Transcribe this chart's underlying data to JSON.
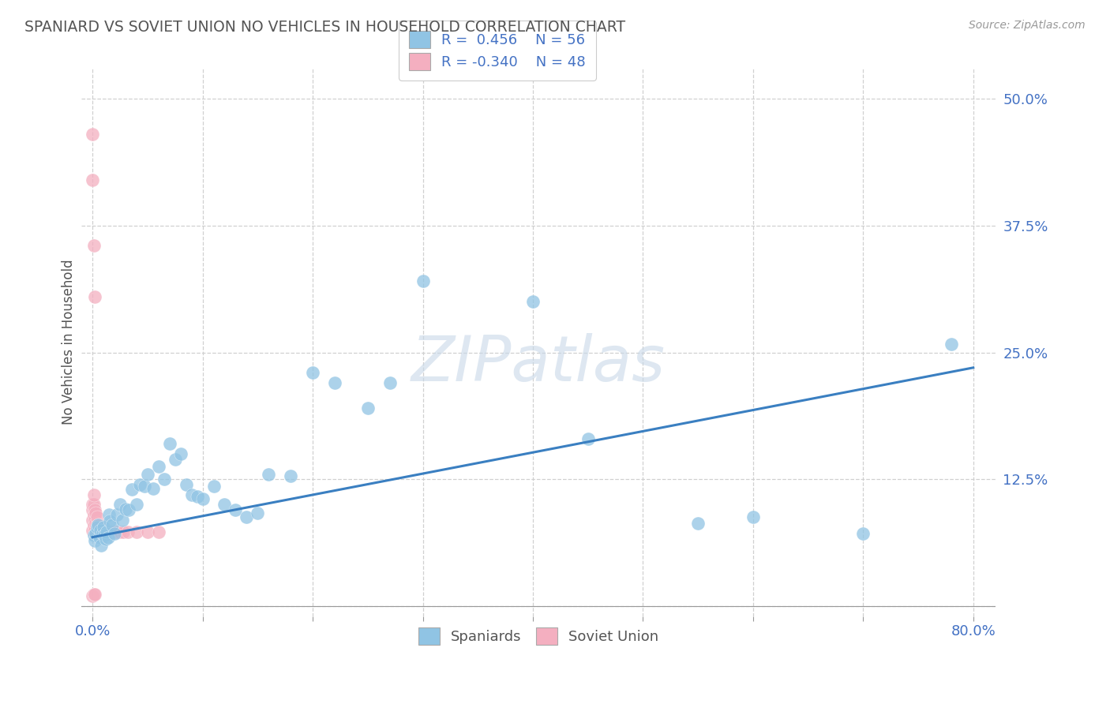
{
  "title": "SPANIARD VS SOVIET UNION NO VEHICLES IN HOUSEHOLD CORRELATION CHART",
  "source": "Source: ZipAtlas.com",
  "ylabel": "No Vehicles in Household",
  "xlim": [
    -0.01,
    0.82
  ],
  "ylim": [
    -0.01,
    0.53
  ],
  "xticks": [
    0.0,
    0.1,
    0.2,
    0.3,
    0.4,
    0.5,
    0.6,
    0.7,
    0.8
  ],
  "xticklabels": [
    "0.0%",
    "",
    "",
    "",
    "",
    "",
    "",
    "",
    "80.0%"
  ],
  "yticks": [
    0.0,
    0.125,
    0.25,
    0.375,
    0.5
  ],
  "yticklabels": [
    "",
    "12.5%",
    "25.0%",
    "37.5%",
    "50.0%"
  ],
  "blue_color": "#90c4e4",
  "pink_color": "#f4afc0",
  "line_color": "#3a7fc1",
  "tick_color": "#4472c4",
  "title_color": "#555555",
  "source_color": "#999999",
  "watermark": "ZIPatlas",
  "blue_R": 0.456,
  "blue_N": 56,
  "pink_R": -0.34,
  "pink_N": 48,
  "blue_line_x0": 0.0,
  "blue_line_y0": 0.068,
  "blue_line_x1": 0.8,
  "blue_line_y1": 0.235,
  "spaniards_x": [
    0.001,
    0.002,
    0.003,
    0.004,
    0.005,
    0.006,
    0.007,
    0.008,
    0.009,
    0.01,
    0.011,
    0.012,
    0.013,
    0.014,
    0.015,
    0.016,
    0.018,
    0.02,
    0.022,
    0.025,
    0.027,
    0.03,
    0.033,
    0.036,
    0.04,
    0.043,
    0.047,
    0.05,
    0.055,
    0.06,
    0.065,
    0.07,
    0.075,
    0.08,
    0.085,
    0.09,
    0.095,
    0.1,
    0.11,
    0.12,
    0.13,
    0.14,
    0.15,
    0.16,
    0.18,
    0.2,
    0.22,
    0.25,
    0.27,
    0.3,
    0.4,
    0.45,
    0.55,
    0.6,
    0.7,
    0.78
  ],
  "spaniards_y": [
    0.07,
    0.065,
    0.072,
    0.078,
    0.08,
    0.068,
    0.075,
    0.06,
    0.072,
    0.078,
    0.07,
    0.066,
    0.073,
    0.068,
    0.09,
    0.084,
    0.08,
    0.072,
    0.09,
    0.1,
    0.085,
    0.096,
    0.095,
    0.115,
    0.1,
    0.12,
    0.118,
    0.13,
    0.116,
    0.138,
    0.125,
    0.16,
    0.145,
    0.15,
    0.12,
    0.11,
    0.108,
    0.106,
    0.118,
    0.1,
    0.095,
    0.088,
    0.092,
    0.13,
    0.128,
    0.23,
    0.22,
    0.195,
    0.22,
    0.32,
    0.3,
    0.165,
    0.082,
    0.088,
    0.072,
    0.258
  ],
  "soviet_x": [
    0.0,
    0.0,
    0.0,
    0.0,
    0.0,
    0.0,
    0.001,
    0.001,
    0.001,
    0.001,
    0.001,
    0.002,
    0.002,
    0.002,
    0.002,
    0.003,
    0.003,
    0.003,
    0.004,
    0.004,
    0.004,
    0.005,
    0.005,
    0.006,
    0.006,
    0.007,
    0.007,
    0.008,
    0.009,
    0.01,
    0.011,
    0.012,
    0.013,
    0.014,
    0.015,
    0.016,
    0.018,
    0.02,
    0.022,
    0.025,
    0.028,
    0.032,
    0.04,
    0.05,
    0.06,
    0.0,
    0.001,
    0.002
  ],
  "soviet_y": [
    0.075,
    0.085,
    0.095,
    0.1,
    0.42,
    0.465,
    0.08,
    0.09,
    0.1,
    0.11,
    0.355,
    0.075,
    0.085,
    0.095,
    0.305,
    0.072,
    0.082,
    0.092,
    0.072,
    0.082,
    0.088,
    0.072,
    0.08,
    0.072,
    0.08,
    0.073,
    0.078,
    0.072,
    0.073,
    0.073,
    0.075,
    0.072,
    0.073,
    0.074,
    0.073,
    0.073,
    0.073,
    0.073,
    0.073,
    0.073,
    0.073,
    0.073,
    0.073,
    0.073,
    0.073,
    0.01,
    0.012,
    0.012
  ]
}
